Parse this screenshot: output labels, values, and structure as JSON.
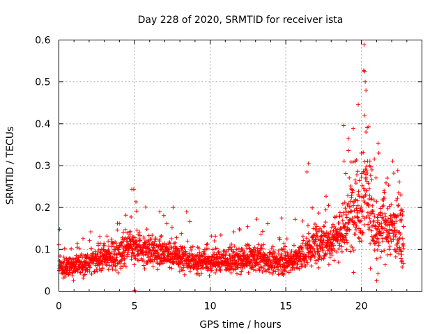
{
  "chart_data": {
    "type": "scatter",
    "title": "Day 228 of 2020, SRMTID for receiver ista",
    "xlabel": "GPS time / hours",
    "ylabel": "SRMTID / TECUs",
    "xlim": [
      0,
      24
    ],
    "ylim": [
      0,
      0.6
    ],
    "x_ticks": [
      0,
      5,
      10,
      15,
      20
    ],
    "x_tick_labels": [
      "0",
      "5",
      "10",
      "15",
      "20"
    ],
    "y_ticks": [
      0,
      0.1,
      0.2,
      0.3,
      0.4,
      0.5,
      0.6
    ],
    "y_tick_labels": [
      "0",
      "0.1",
      "0.2",
      "0.3",
      "0.4",
      "0.5",
      "0.6"
    ],
    "grid": true,
    "marker": "+",
    "color": "#ff0000",
    "x_data_range": [
      0,
      22.8
    ],
    "baseline_profile": [
      [
        0.0,
        0.06
      ],
      [
        1.0,
        0.058
      ],
      [
        2.0,
        0.068
      ],
      [
        3.0,
        0.085
      ],
      [
        4.0,
        0.09
      ],
      [
        4.8,
        0.11
      ],
      [
        5.5,
        0.095
      ],
      [
        6.0,
        0.1
      ],
      [
        7.0,
        0.09
      ],
      [
        8.0,
        0.08
      ],
      [
        9.0,
        0.075
      ],
      [
        10.0,
        0.07
      ],
      [
        11.0,
        0.075
      ],
      [
        12.0,
        0.07
      ],
      [
        13.0,
        0.08
      ],
      [
        14.0,
        0.07
      ],
      [
        15.0,
        0.07
      ],
      [
        16.0,
        0.08
      ],
      [
        16.5,
        0.1
      ],
      [
        17.0,
        0.11
      ],
      [
        18.0,
        0.12
      ],
      [
        19.0,
        0.16
      ],
      [
        19.5,
        0.2
      ],
      [
        20.0,
        0.22
      ],
      [
        20.3,
        0.26
      ],
      [
        20.7,
        0.18
      ],
      [
        21.0,
        0.12
      ],
      [
        21.5,
        0.16
      ],
      [
        22.0,
        0.15
      ],
      [
        22.5,
        0.14
      ],
      [
        22.8,
        0.13
      ]
    ],
    "highlights": [
      {
        "x": 0.05,
        "y": 0.148
      },
      {
        "x": 4.82,
        "y": 0.243
      },
      {
        "x": 4.95,
        "y": 0.243
      },
      {
        "x": 5.0,
        "y": 0.002
      },
      {
        "x": 5.05,
        "y": 0.0
      },
      {
        "x": 7.55,
        "y": 0.2
      },
      {
        "x": 16.5,
        "y": 0.305
      },
      {
        "x": 16.4,
        "y": 0.285
      },
      {
        "x": 19.6,
        "y": 0.31
      },
      {
        "x": 20.0,
        "y": 0.33
      },
      {
        "x": 20.15,
        "y": 0.527
      },
      {
        "x": 20.2,
        "y": 0.525
      },
      {
        "x": 20.25,
        "y": 0.5
      },
      {
        "x": 20.3,
        "y": 0.48
      },
      {
        "x": 20.2,
        "y": 0.42
      },
      {
        "x": 20.3,
        "y": 0.38
      },
      {
        "x": 20.55,
        "y": 0.3
      },
      {
        "x": 20.7,
        "y": 0.29
      },
      {
        "x": 21.1,
        "y": 0.353
      },
      {
        "x": 21.15,
        "y": 0.33
      },
      {
        "x": 21.7,
        "y": 0.27
      },
      {
        "x": 22.4,
        "y": 0.288
      },
      {
        "x": 22.6,
        "y": 0.23
      },
      {
        "x": 21.0,
        "y": 0.025
      }
    ]
  }
}
